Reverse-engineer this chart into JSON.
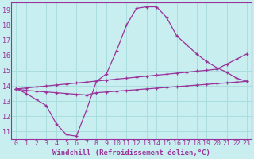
{
  "xlabel": "Windchill (Refroidissement éolien,°C)",
  "background_color": "#c8eef0",
  "line_color": "#993399",
  "grid_color": "#aadddd",
  "xlim": [
    -0.5,
    23.5
  ],
  "ylim": [
    10.5,
    19.5
  ],
  "xticks": [
    0,
    1,
    2,
    3,
    4,
    5,
    6,
    7,
    8,
    9,
    10,
    11,
    12,
    13,
    14,
    15,
    16,
    17,
    18,
    19,
    20,
    21,
    22,
    23
  ],
  "yticks": [
    11,
    12,
    13,
    14,
    15,
    16,
    17,
    18,
    19
  ],
  "curve1": [
    13.8,
    13.5,
    13.1,
    12.7,
    11.5,
    10.8,
    10.7,
    12.4,
    14.3,
    14.8,
    16.3,
    18.0,
    19.1,
    19.2,
    19.2,
    18.5,
    17.3,
    16.7,
    16.1,
    15.6,
    15.2,
    14.9,
    14.5,
    14.3
  ],
  "curve2": [
    13.8,
    13.7,
    13.65,
    13.6,
    13.55,
    13.5,
    13.45,
    13.4,
    13.55,
    13.6,
    13.65,
    13.7,
    13.75,
    13.8,
    13.85,
    13.9,
    13.95,
    14.0,
    14.05,
    14.1,
    14.15,
    14.2,
    14.25,
    14.3
  ],
  "curve3": [
    13.8,
    13.86,
    13.93,
    13.99,
    14.06,
    14.12,
    14.19,
    14.25,
    14.32,
    14.38,
    14.45,
    14.51,
    14.58,
    14.64,
    14.71,
    14.77,
    14.84,
    14.9,
    14.97,
    15.03,
    15.1,
    15.43,
    15.77,
    16.1
  ],
  "fontsize_label": 6.5,
  "fontsize_tick": 6.0
}
